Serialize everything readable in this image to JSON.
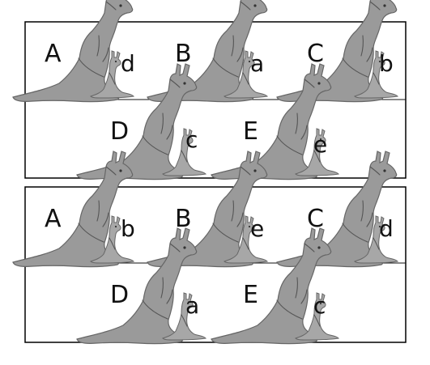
{
  "panels": [
    {
      "pairs": [
        {
          "adult": "A",
          "joey": "d"
        },
        {
          "adult": "B",
          "joey": "a"
        },
        {
          "adult": "C",
          "joey": "b"
        },
        {
          "adult": "D",
          "joey": "c"
        },
        {
          "adult": "E",
          "joey": "e"
        }
      ]
    },
    {
      "pairs": [
        {
          "adult": "A",
          "joey": "b"
        },
        {
          "adult": "B",
          "joey": "e"
        },
        {
          "adult": "C",
          "joey": "d"
        },
        {
          "adult": "D",
          "joey": "a"
        },
        {
          "adult": "E",
          "joey": "c"
        }
      ]
    }
  ],
  "colors": {
    "border": "#000000",
    "kangaroo_fill": "#9a9a9a",
    "joey_fill": "#a7a7a7",
    "text": "#111111"
  },
  "icons": {
    "adult": "kangaroo-icon",
    "young": "joey-icon"
  }
}
